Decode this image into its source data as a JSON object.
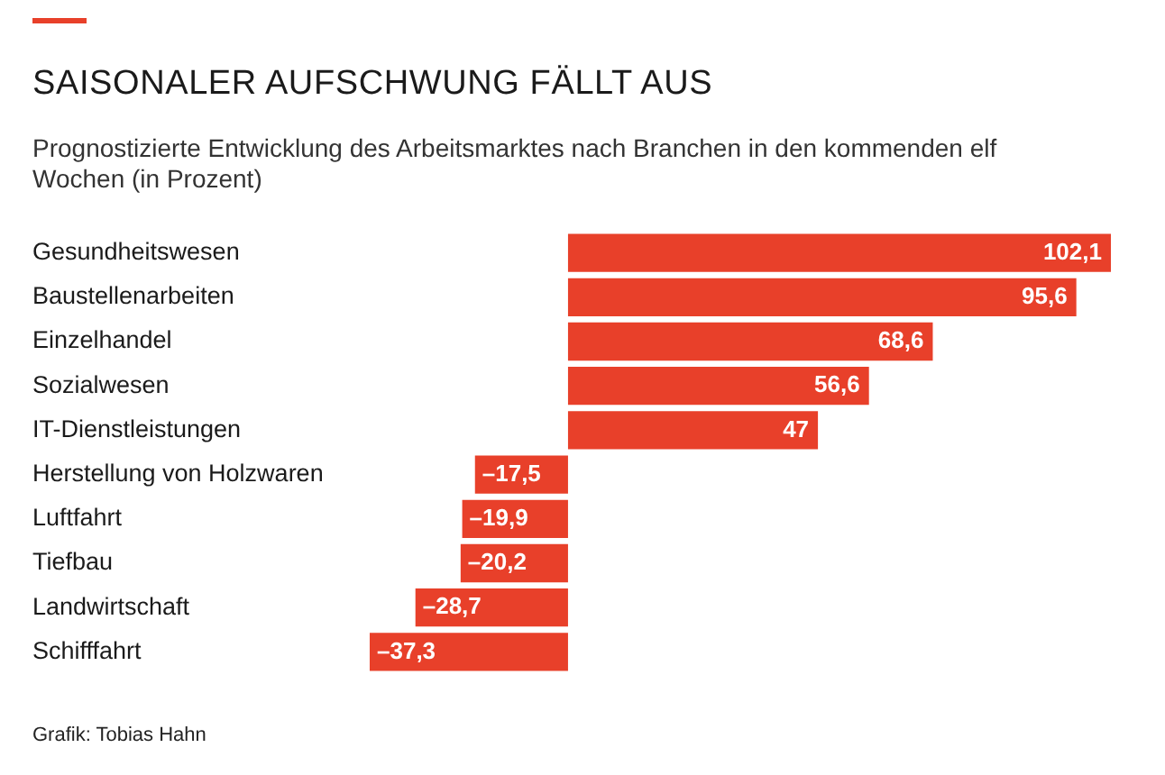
{
  "chart_data": {
    "type": "bar",
    "orientation": "horizontal",
    "title": "SAISONALER AUFSCHWUNG FÄLLT AUS",
    "subtitle": "Prognostizierte Entwicklung des Arbeitsmarktes nach Branchen in den kommenden elf Wochen (in Prozent)",
    "categories": [
      "Gesundheitswesen",
      "Baustellenarbeiten",
      "Einzelhandel",
      "Sozialwesen",
      "IT-Dienstleistungen",
      "Herstellung von Holzwaren",
      "Luftfahrt",
      "Tiefbau",
      "Landwirtschaft",
      "Schifffahrt"
    ],
    "values": [
      102.1,
      95.6,
      68.6,
      56.6,
      47,
      -17.5,
      -19.9,
      -20.2,
      -28.7,
      -37.3
    ],
    "value_labels": [
      "102,1",
      "95,6",
      "68,6",
      "56,6",
      "47",
      "–17,5",
      "–19,9",
      "–20,2",
      "–28,7",
      "–37,3"
    ],
    "color": "#e8402a",
    "legend": false,
    "annotations": [
      "Grafik: Tobias Hahn"
    ]
  }
}
